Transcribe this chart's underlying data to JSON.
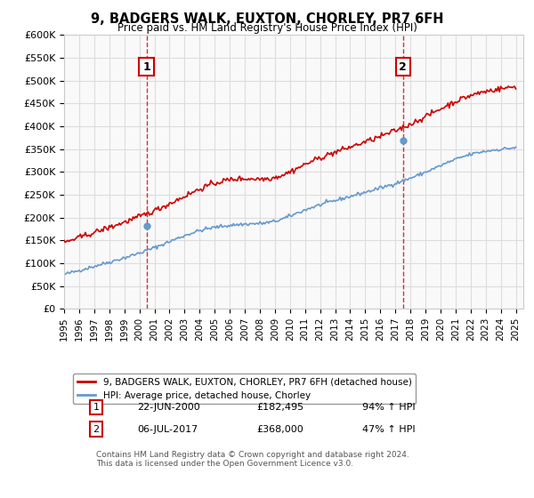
{
  "title": "9, BADGERS WALK, EUXTON, CHORLEY, PR7 6FH",
  "subtitle": "Price paid vs. HM Land Registry's House Price Index (HPI)",
  "ylabel_ticks": [
    "£0",
    "£50K",
    "£100K",
    "£150K",
    "£200K",
    "£250K",
    "£300K",
    "£350K",
    "£400K",
    "£450K",
    "£500K",
    "£550K",
    "£600K"
  ],
  "ylim": [
    0,
    600000
  ],
  "ytick_values": [
    0,
    50000,
    100000,
    150000,
    200000,
    250000,
    300000,
    350000,
    400000,
    450000,
    500000,
    550000,
    600000
  ],
  "property_color": "#cc0000",
  "hpi_color": "#6699cc",
  "dashed_color": "#cc0000",
  "sale1_date_num": 2000.47,
  "sale1_price": 182495,
  "sale1_label": "1",
  "sale2_date_num": 2017.51,
  "sale2_price": 368000,
  "sale2_label": "2",
  "legend_property": "9, BADGERS WALK, EUXTON, CHORLEY, PR7 6FH (detached house)",
  "legend_hpi": "HPI: Average price, detached house, Chorley",
  "annotation1_date": "22-JUN-2000",
  "annotation1_price": "£182,495",
  "annotation1_hpi": "94% ↑ HPI",
  "annotation2_date": "06-JUL-2017",
  "annotation2_price": "£368,000",
  "annotation2_hpi": "47% ↑ HPI",
  "footer": "Contains HM Land Registry data © Crown copyright and database right 2024.\nThis data is licensed under the Open Government Licence v3.0.",
  "background_color": "#f9f9f9",
  "grid_color": "#dddddd"
}
